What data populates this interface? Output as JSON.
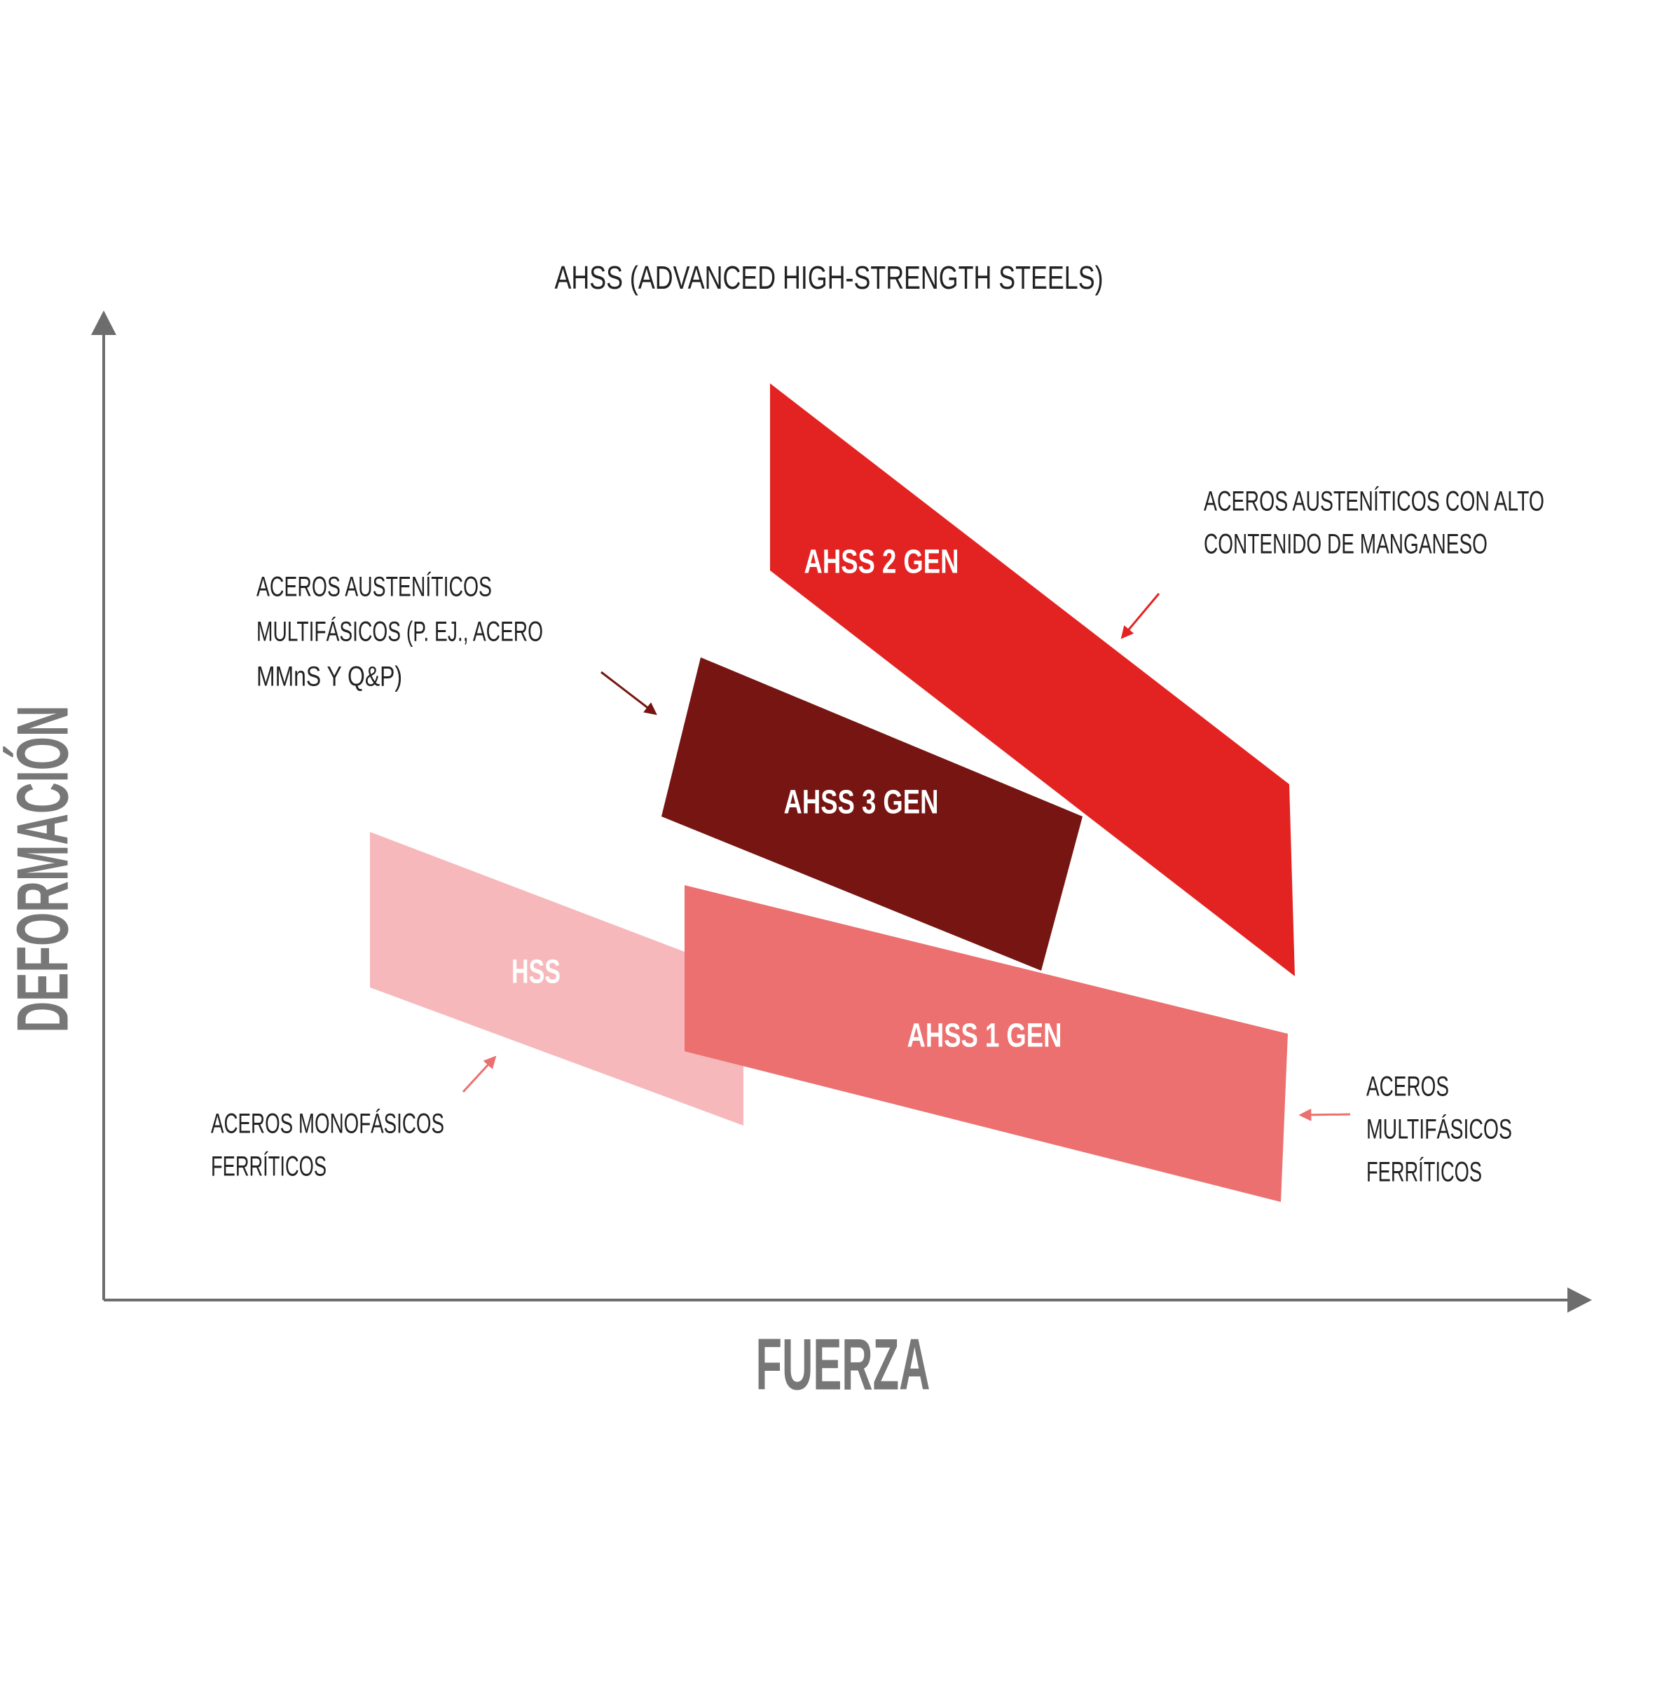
{
  "title": "AHSS (ADVANCED HIGH-STRENGTH STEELS)",
  "axes": {
    "x_label": "FUERZA",
    "y_label": "DEFORMACIÓN"
  },
  "regions": [
    {
      "label": "AHSS 2 GEN"
    },
    {
      "label": "AHSS 3 GEN"
    },
    {
      "label": "HSS"
    },
    {
      "label": "AHSS 1 GEN"
    }
  ],
  "annotations": [
    {
      "lines": [
        "ACEROS AUSTENÍTICOS CON ALTO",
        "CONTENIDO DE MANGANESO"
      ]
    },
    {
      "lines": [
        "ACEROS AUSTENÍTICOS",
        "MULTIFÁSICOS (P. EJ., ACERO",
        "MMnS Y Q&P)"
      ]
    },
    {
      "lines": [
        "ACEROS MONOFÁSICOS",
        "FERRÍTICOS"
      ]
    },
    {
      "lines": [
        "ACEROS",
        "MULTIFÁSICOS",
        "FERRÍTICOS"
      ]
    }
  ]
}
